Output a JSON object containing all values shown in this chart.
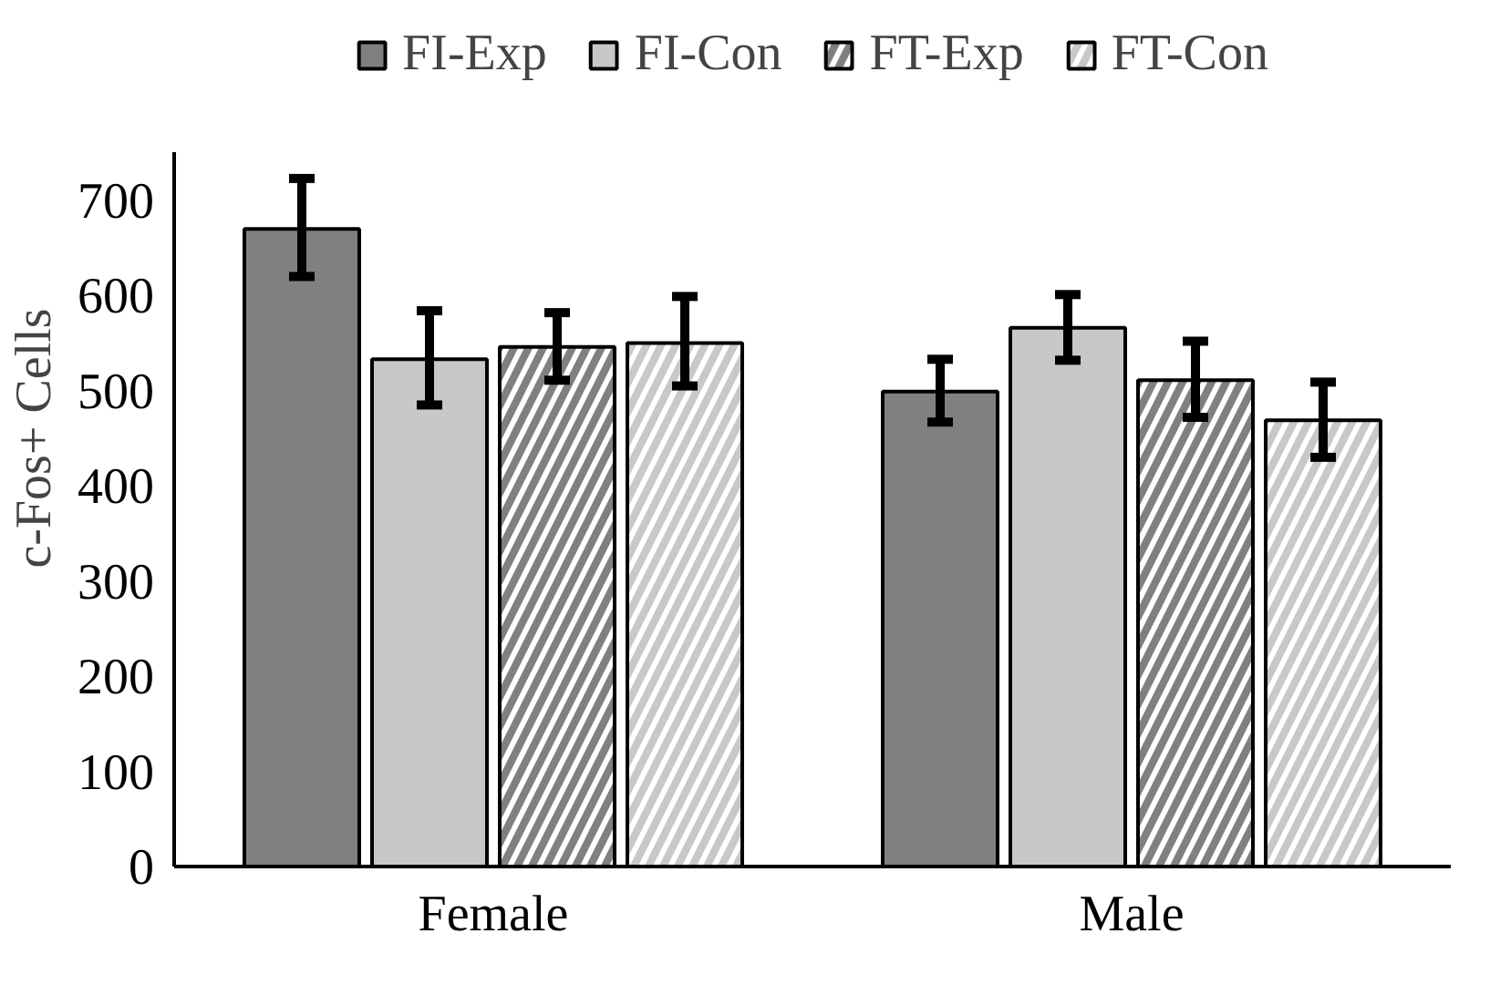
{
  "chart_data": {
    "type": "bar",
    "ylabel": "c-Fos+ Cells",
    "categories": [
      "Female",
      "Male"
    ],
    "series": [
      {
        "name": "FI-Exp",
        "color": "#808080",
        "values": [
          670,
          499
        ],
        "errors": [
          [
            620,
            723
          ],
          [
            467,
            533
          ]
        ]
      },
      {
        "name": "FI-Con",
        "color": "#c8c8c8",
        "values": [
          533,
          566
        ],
        "errors": [
          [
            485,
            584
          ],
          [
            532,
            601
          ]
        ]
      },
      {
        "name": "FT-Exp",
        "color": "#808080",
        "values": [
          546,
          511
        ],
        "errors": [
          [
            511,
            582
          ],
          [
            472,
            552
          ]
        ]
      },
      {
        "name": "FT-Con",
        "color": "#c8c8c8",
        "values": [
          550,
          469
        ],
        "errors": [
          [
            505,
            599
          ],
          [
            430,
            509
          ]
        ]
      }
    ],
    "ylim": [
      0,
      750
    ],
    "yticks": [
      0,
      100,
      200,
      300,
      400,
      500,
      600,
      700
    ],
    "grid": false,
    "legend": "top"
  }
}
